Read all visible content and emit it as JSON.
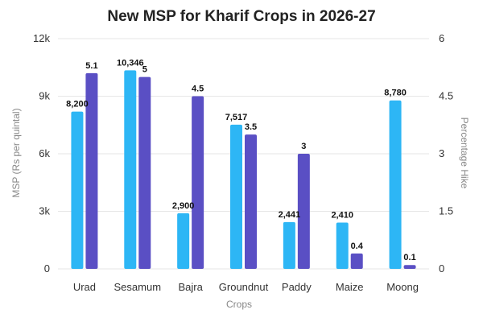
{
  "chart_data": {
    "type": "bar",
    "title": "New MSP for Kharif Crops in 2026-27",
    "xlabel": "Crops",
    "ylabel": "MSP (Rs per quintal)",
    "y2label": "Percentage Hike",
    "categories": [
      "Urad",
      "Sesamum",
      "Bajra",
      "Groundnut",
      "Paddy",
      "Maize",
      "Moong"
    ],
    "ylim": [
      0,
      12000
    ],
    "y2lim": [
      0,
      6
    ],
    "yticks": [
      "0",
      "3k",
      "6k",
      "9k",
      "12k"
    ],
    "y2ticks": [
      "0",
      "1.5",
      "3",
      "4.5",
      "6"
    ],
    "grid": true,
    "series": [
      {
        "axis": "left",
        "color": "#2db6f5",
        "values": [
          8200,
          10346,
          2900,
          7517,
          2441,
          2410,
          8780
        ],
        "labels": [
          "8,200",
          "10,346",
          "2,900",
          "7,517",
          "2,441",
          "2,410",
          "8,780"
        ]
      },
      {
        "axis": "right",
        "color": "#5a4fc4",
        "values": [
          5.1,
          5,
          4.5,
          3.5,
          3,
          0.4,
          0.1
        ],
        "labels": [
          "5.1",
          "5",
          "4.5",
          "3.5",
          "3",
          "0.4",
          "0.1"
        ]
      }
    ]
  }
}
